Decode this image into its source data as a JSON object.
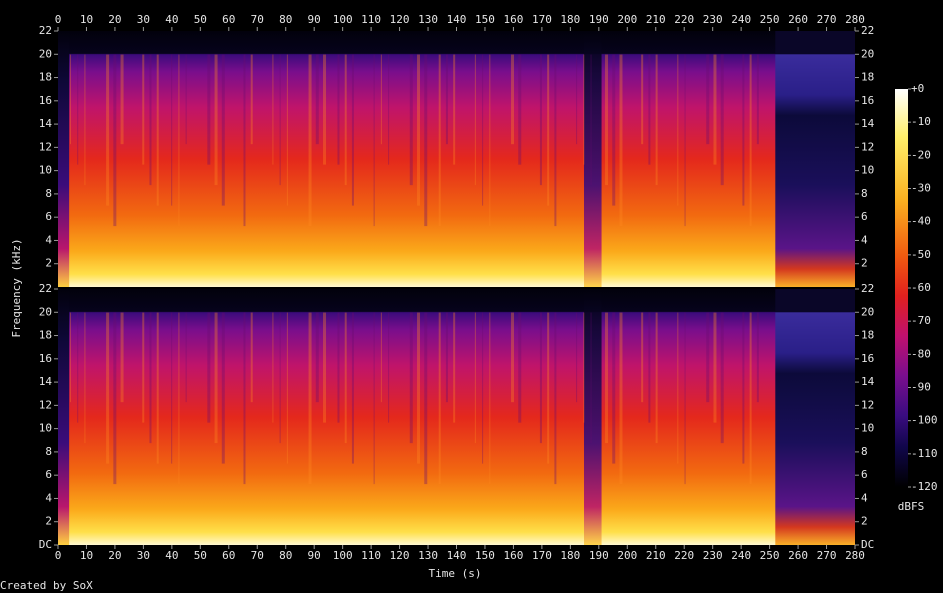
{
  "chart_data": {
    "type": "spectrogram",
    "x_label": "Time (s)",
    "y_label": "Frequency (kHz)",
    "xlim": [
      0,
      280
    ],
    "xticks": [
      0,
      10,
      20,
      30,
      40,
      50,
      60,
      70,
      80,
      90,
      100,
      110,
      120,
      130,
      140,
      150,
      160,
      170,
      180,
      190,
      200,
      210,
      220,
      230,
      240,
      250,
      260,
      270,
      280
    ],
    "channels": [
      {
        "ylim": [
          0,
          22
        ],
        "yticks": [
          2,
          4,
          6,
          8,
          10,
          12,
          14,
          16,
          18,
          20,
          22
        ]
      },
      {
        "ylim": [
          0,
          22
        ],
        "yticks": [
          {
            "value": 0,
            "label": "DC"
          },
          2,
          4,
          6,
          8,
          10,
          12,
          14,
          16,
          18,
          20,
          22
        ]
      }
    ],
    "colorbar": {
      "label": "dBFS",
      "lim": [
        -120,
        0
      ],
      "ticks": [
        {
          "value": 0,
          "label": "+0"
        },
        -10,
        -20,
        -30,
        -40,
        -50,
        -60,
        -70,
        -80,
        -90,
        -100,
        -110,
        -120
      ]
    },
    "footer": "Created by SoX"
  }
}
